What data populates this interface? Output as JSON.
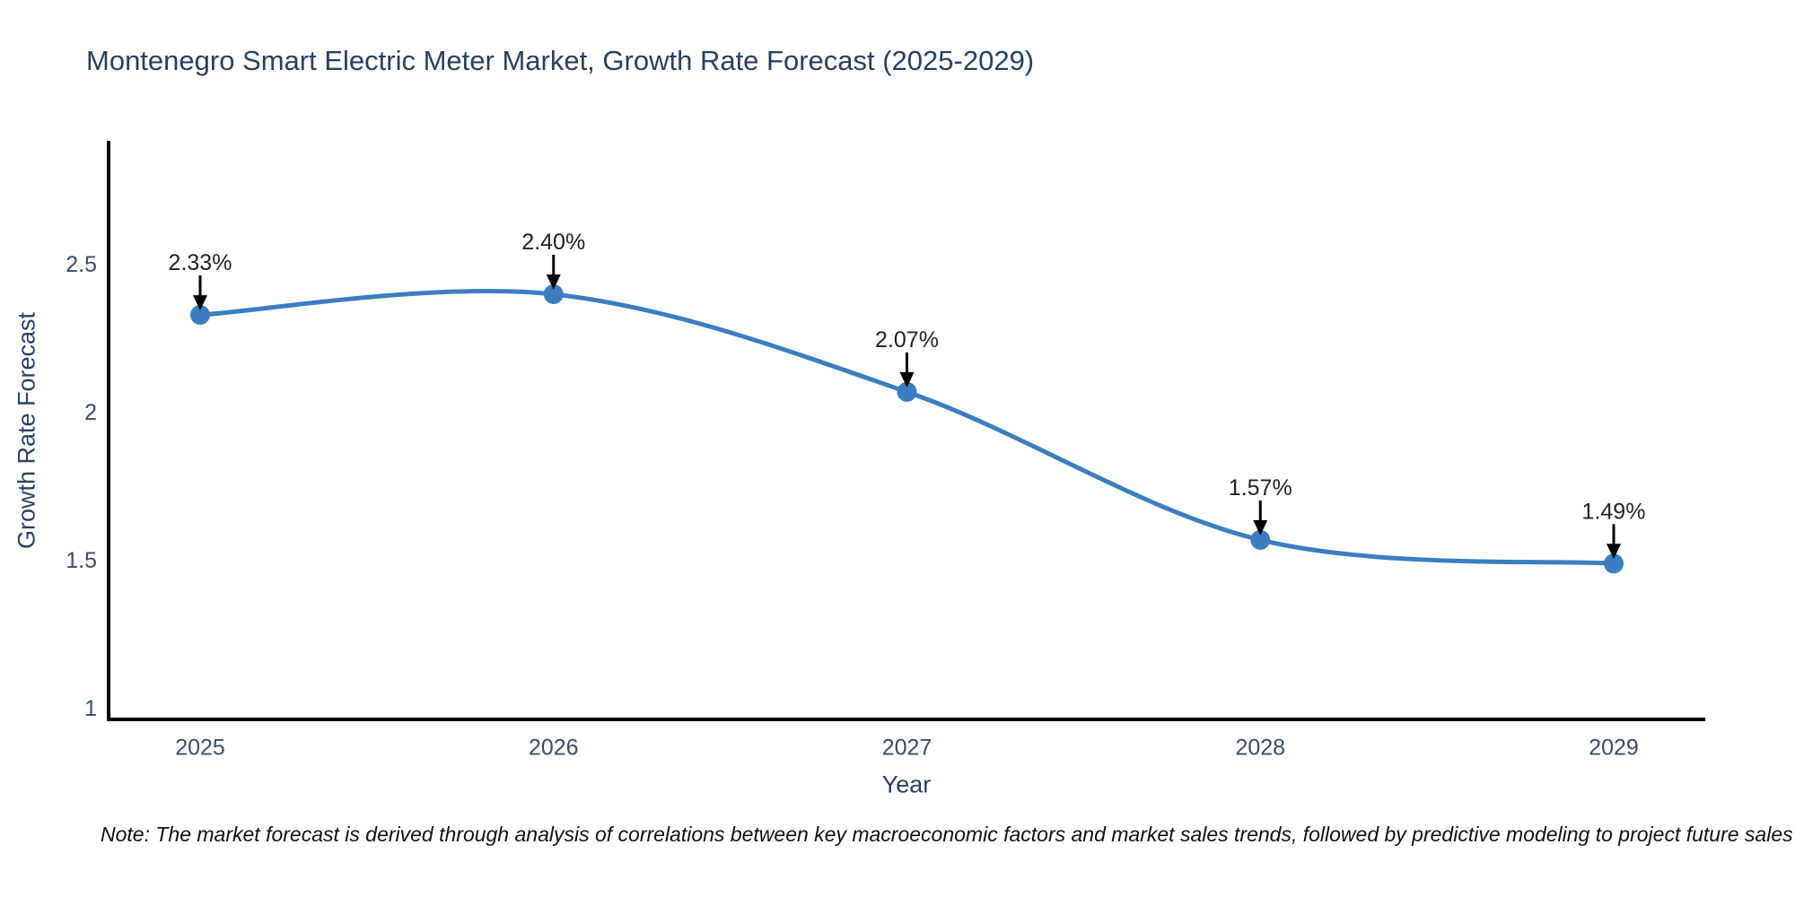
{
  "page": {
    "note": "Note: The market forecast is derived through analysis of correlations between key macroeconomic factors and market sales trends, followed by predictive modeling to project future sales"
  },
  "chart_data": {
    "type": "line",
    "title": "Montenegro Smart Electric Meter Market, Growth Rate Forecast (2025-2029)",
    "xlabel": "Year",
    "ylabel": "Growth Rate Forecast",
    "x": [
      2025,
      2026,
      2027,
      2028,
      2029
    ],
    "values": [
      2.33,
      2.4,
      2.07,
      1.57,
      1.49
    ],
    "point_labels": [
      "2.33%",
      "2.40%",
      "2.07%",
      "1.57%",
      "1.49%"
    ],
    "xtick_labels": [
      "2025",
      "2026",
      "2027",
      "2028",
      "2029"
    ],
    "ytick_values": [
      1,
      1.5,
      2,
      2.5
    ],
    "ytick_labels": [
      "1",
      "1.5",
      "2",
      "2.5"
    ],
    "ylim": [
      1,
      2.91
    ],
    "line_shape": "spline",
    "grid": false,
    "legend": "none",
    "marker": "circle",
    "annotation_arrow": "down-arrow",
    "colors": {
      "line": "#3A7EBF",
      "marker": "#3A7EBF",
      "annotation_text": "#222222",
      "arrow": "#000000",
      "axis_line": "#000000",
      "tick_label": "#3E4C63",
      "title": "#2A3F5F"
    }
  }
}
